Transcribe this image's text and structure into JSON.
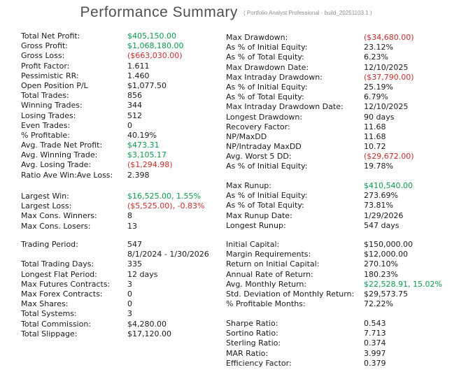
{
  "header": {
    "title": "Performance Summary",
    "subtitle": "( Portfolio Analyst Professional - build_20251103.1 )"
  },
  "colors": {
    "positive": "#0a9b4b",
    "negative": "#cf2b2b",
    "text": "#1a1a1a",
    "title": "#4f4f4f",
    "subtitle": "#8e8e8e",
    "background": "#ffffff"
  },
  "blocks": [
    {
      "name": "profit-stats",
      "rows": [
        {
          "label": "Total Net Profit:",
          "value": "$405,150.00",
          "tone": "pos"
        },
        {
          "label": "Gross Profit:",
          "value": "$1,068,180.00",
          "tone": "pos"
        },
        {
          "label": "Gross Loss:",
          "value": "($663,030.00)",
          "tone": "neg"
        },
        {
          "label": "Profit Factor:",
          "value": "1.611"
        },
        {
          "label": "Pessimistic RR:",
          "value": "1.460"
        },
        {
          "label": "Open Position P/L",
          "value": "$1,077.50"
        },
        {
          "label": "Total Trades:",
          "value": "856"
        },
        {
          "label": "Winning Trades:",
          "value": "344"
        },
        {
          "label": "Losing Trades:",
          "value": "512"
        },
        {
          "label": "Even Trades:",
          "value": "0"
        },
        {
          "label": "% Profitable:",
          "value": "40.19%"
        },
        {
          "label": "Avg. Trade Net Profit:",
          "value": "$473.31",
          "tone": "pos"
        },
        {
          "label": "Avg. Winning Trade:",
          "value": "$3,105.17",
          "tone": "pos"
        },
        {
          "label": "Avg. Losing Trade:",
          "value": "($1,294.98)",
          "tone": "neg"
        },
        {
          "label": "Ratio Ave Win:Ave Loss:",
          "value": "2.398"
        }
      ]
    },
    {
      "name": "win-loss-extremes",
      "rows": [
        {
          "label": "Largest Win:",
          "value": "$16,525.00, 1.55%",
          "tone": "pos"
        },
        {
          "label": "Largest Loss:",
          "value": "($5,525.00), -0.83%",
          "tone": "neg"
        },
        {
          "label": "Max Cons. Winners:",
          "value": "8"
        },
        {
          "label": "Max Cons. Losers:",
          "value": "13"
        }
      ]
    },
    {
      "name": "trading-period-stats",
      "rows": [
        {
          "label": "Trading Period:",
          "value": "547"
        },
        {
          "label": "",
          "value": "8/1/2024 - 1/30/2026"
        },
        {
          "label": "Total Trading Days:",
          "value": "335"
        },
        {
          "label": "Longest Flat Period:",
          "value": "12 days"
        },
        {
          "label": "Max Futures Contracts:",
          "value": "3"
        },
        {
          "label": "Max Forex Contracts:",
          "value": "0"
        },
        {
          "label": "Max Shares:",
          "value": "0"
        },
        {
          "label": "Total Systems:",
          "value": "3"
        },
        {
          "label": "Total Commission:",
          "value": "$4,280.00"
        },
        {
          "label": "Total Slippage:",
          "value": "$17,120.00"
        }
      ]
    },
    {
      "name": "drawdown-stats",
      "rows": [
        {
          "label": "Max Drawdown:",
          "value": "($34,680.00)",
          "tone": "neg"
        },
        {
          "label": "As % of Initial Equity:",
          "value": "23.12%"
        },
        {
          "label": "As % of Total Equity:",
          "value": "6.23%"
        },
        {
          "label": "Max Drawdown Date:",
          "value": "12/10/2025"
        },
        {
          "label": "Max Intraday Drawdown:",
          "value": "($37,790.00)",
          "tone": "neg"
        },
        {
          "label": "As % of Initial Equity:",
          "value": "25.19%"
        },
        {
          "label": "As % of Total Equity:",
          "value": "6.79%"
        },
        {
          "label": "Max Intraday Drawdown Date:",
          "value": "12/10/2025"
        },
        {
          "label": "Longest Drawdown:",
          "value": "90 days"
        },
        {
          "label": "Recovery Factor:",
          "value": "11.68"
        },
        {
          "label": "NP/MaxDD",
          "value": "11.68"
        },
        {
          "label": "NP/Intraday MaxDD",
          "value": "10.72"
        },
        {
          "label": "Avg. Worst 5 DD:",
          "value": "($29,672.00)",
          "tone": "neg"
        },
        {
          "label": "As % of Initial Equity:",
          "value": "19.78%"
        }
      ]
    },
    {
      "name": "runup-stats",
      "rows": [
        {
          "label": "Max Runup:",
          "value": "$410,540.00",
          "tone": "pos"
        },
        {
          "label": "As % of Initial Equity:",
          "value": "273.69%"
        },
        {
          "label": "As % of Total Equity:",
          "value": "73.81%"
        },
        {
          "label": "Max Runup Date:",
          "value": "1/29/2026"
        },
        {
          "label": "Longest Runup:",
          "value": "547 days"
        }
      ]
    },
    {
      "name": "capital-return-stats",
      "rows": [
        {
          "label": "Initial Capital:",
          "value": "$150,000.00"
        },
        {
          "label": "Margin Requirements:",
          "value": "$12,000.00"
        },
        {
          "label": "Return on Initial Capital:",
          "value": "270.10%"
        },
        {
          "label": "Annual Rate of Return:",
          "value": "180.23%"
        },
        {
          "label": "Avg. Monthly Return:",
          "value": "$22,528.91, 15.02%",
          "tone": "pos"
        },
        {
          "label": "Std. Deviation of Monthly Return:",
          "value": "$29,573.75"
        },
        {
          "label": "% Profitable Months:",
          "value": "72.22%"
        }
      ]
    },
    {
      "name": "risk-ratios",
      "rows": [
        {
          "label": "Sharpe Ratio:",
          "value": "0.543"
        },
        {
          "label": "Sortino Ratio:",
          "value": "7.713"
        },
        {
          "label": "Sterling Ratio:",
          "value": "0.374"
        },
        {
          "label": "MAR Ratio:",
          "value": "3.997"
        },
        {
          "label": "Efficiency Factor:",
          "value": "0.379"
        }
      ]
    }
  ]
}
